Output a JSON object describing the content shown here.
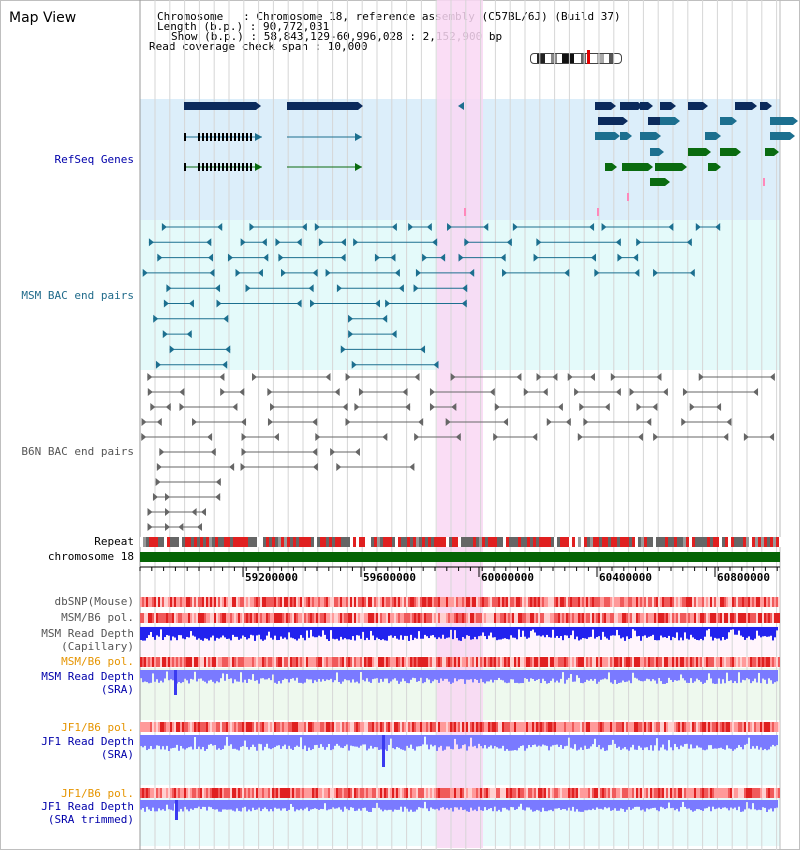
{
  "title": "Map View",
  "info": {
    "chromosome": "Chromosome   : Chromosome 18, reference assembly (C57BL/6J) (Build 37)",
    "length": "Length (b.p.) : 90,772,031",
    "show": "Show (b.p.) : 58,843,129-60,996,028 : 2,152,900 bp",
    "coverage": "Read coverage check span : 10,000"
  },
  "tracks": {
    "refseq": "RefSeq Genes",
    "msm_bac": "MSM BAC end pairs",
    "b6n_bac": "B6N BAC end pairs",
    "repeat": "Repeat",
    "chromosome": "chromosome 18",
    "dbsnp": "dbSNP(Mouse)",
    "msm_b6_pol_1": "MSM/B6 pol.",
    "msm_depth_cap_1": "MSM Read Depth",
    "msm_depth_cap_2": "(Capillary)",
    "msm_b6_pol_2": "MSM/B6 pol.",
    "msm_depth_sra_1": "MSM Read Depth",
    "msm_depth_sra_2": "(SRA)",
    "jf1_b6_pol_1": "JF1/B6 pol.",
    "jf1_depth_1": "JF1 Read Depth",
    "jf1_depth_2": "(SRA)",
    "jf1_b6_pol_2": "JF1/B6 pol.",
    "jf1_depth_trim_1": "JF1 Read Depth",
    "jf1_depth_trim_2": "(SRA trimmed)"
  },
  "axis": {
    "ticks": [
      "59200000",
      "59600000",
      "60000000",
      "60400000",
      "60800000"
    ]
  },
  "colors": {
    "refseq_bg": "#dceefa",
    "msm_bac_bg": "#e4fafa",
    "highlight": "#f9d7f3",
    "navy": "#0b2a5c",
    "teal": "#1c6f8f",
    "green": "#0a6b10",
    "chrom_green": "#056405",
    "depth_blue": "#2222ee",
    "depth_light": "#7a7aff",
    "label_blue": "#0000aa",
    "label_teal": "#1f6a8a",
    "label_orange": "#e59400",
    "label_gray": "#555555"
  }
}
